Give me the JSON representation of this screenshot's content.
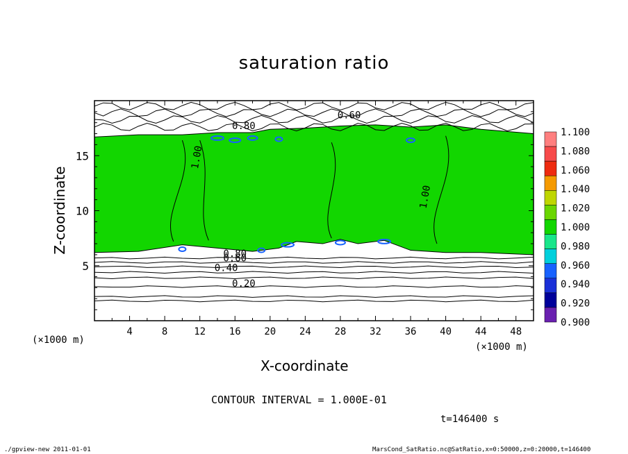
{
  "chart_data": {
    "type": "heatmap",
    "title": "saturation ratio",
    "xlabel": "X-coordinate",
    "ylabel": "Z-coordinate",
    "x_unit_label": "(×1000 m)",
    "xlim": [
      0,
      50
    ],
    "ylim": [
      0,
      20
    ],
    "x_ticks": [
      4,
      8,
      12,
      16,
      20,
      24,
      28,
      32,
      36,
      40,
      44,
      48
    ],
    "y_ticks": [
      5,
      10,
      15
    ],
    "colorbar": {
      "levels": [
        "1.100",
        "1.080",
        "1.060",
        "1.040",
        "1.020",
        "1.000",
        "0.980",
        "0.960",
        "0.940",
        "0.920",
        "0.900"
      ],
      "colors": [
        "#ff7f7f",
        "#f74a4a",
        "#ee2b10",
        "#f59a00",
        "#bfd600",
        "#6ad600",
        "#12d600",
        "#19e68a",
        "#00d0dc",
        "#1862ff",
        "#1a30d8",
        "#00009a",
        "#6a20b0"
      ]
    },
    "contour_labels": [
      "0.60",
      "0.80",
      "1.00",
      "1.00",
      "0.60",
      "0.80",
      "0.40",
      "0.20"
    ],
    "contour_interval": "CONTOUR INTERVAL = 1.000E-01",
    "time": "t=146400 s"
  },
  "footer": {
    "left": "./gpview-new  2011-01-01",
    "right": "MarsCond_SatRatio.nc@SatRatio,x=0:50000,z=0:20000,t=146400"
  }
}
